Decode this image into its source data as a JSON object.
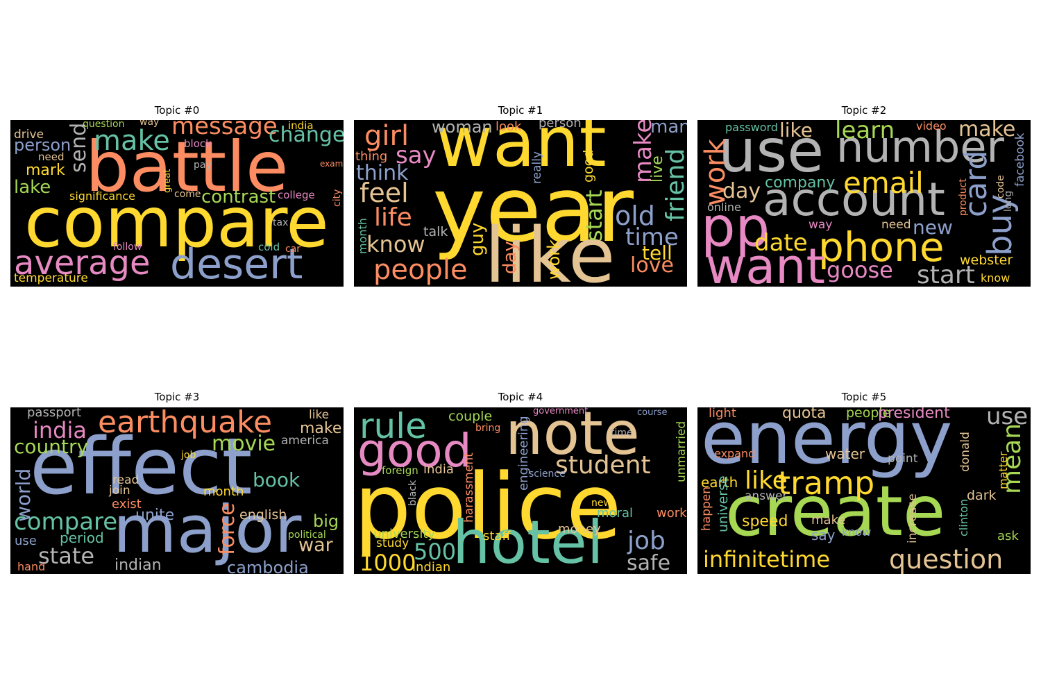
{
  "palette": {
    "teal": "#66c2a5",
    "orange": "#fc8d62",
    "blue": "#8da0cb",
    "pink": "#e78ac3",
    "green": "#a6d854",
    "yellow": "#ffd92f",
    "tan": "#e5c494",
    "grey": "#b3b3b3"
  },
  "topics": [
    {
      "title": "Topic #0",
      "words": [
        {
          "t": "battle",
          "c": "orange"
        },
        {
          "t": "compare",
          "c": "yellow"
        },
        {
          "t": "desert",
          "c": "blue"
        },
        {
          "t": "average",
          "c": "pink"
        },
        {
          "t": "make",
          "c": "teal"
        },
        {
          "t": "message",
          "c": "orange"
        },
        {
          "t": "change",
          "c": "teal"
        },
        {
          "t": "contrast",
          "c": "green"
        },
        {
          "t": "send",
          "c": "grey"
        },
        {
          "t": "person",
          "c": "blue"
        },
        {
          "t": "mark",
          "c": "yellow"
        },
        {
          "t": "lake",
          "c": "green"
        },
        {
          "t": "drive",
          "c": "tan"
        },
        {
          "t": "question",
          "c": "green"
        },
        {
          "t": "way",
          "c": "tan"
        },
        {
          "t": "india",
          "c": "yellow"
        },
        {
          "t": "need",
          "c": "tan"
        },
        {
          "t": "block",
          "c": "pink"
        },
        {
          "t": "pay",
          "c": "grey"
        },
        {
          "t": "great",
          "c": "yellow"
        },
        {
          "t": "exam",
          "c": "orange"
        },
        {
          "t": "come",
          "c": "tan"
        },
        {
          "t": "significance",
          "c": "yellow"
        },
        {
          "t": "college",
          "c": "pink"
        },
        {
          "t": "city",
          "c": "orange"
        },
        {
          "t": "tax",
          "c": "grey"
        },
        {
          "t": "follow",
          "c": "pink"
        },
        {
          "t": "cold",
          "c": "teal"
        },
        {
          "t": "car",
          "c": "orange"
        },
        {
          "t": "temperature",
          "c": "yellow"
        }
      ]
    },
    {
      "title": "Topic #1",
      "words": [
        {
          "t": "want",
          "c": "yellow"
        },
        {
          "t": "year",
          "c": "yellow"
        },
        {
          "t": "like",
          "c": "tan"
        },
        {
          "t": "girl",
          "c": "orange"
        },
        {
          "t": "woman",
          "c": "grey"
        },
        {
          "t": "look",
          "c": "orange"
        },
        {
          "t": "person",
          "c": "grey"
        },
        {
          "t": "man",
          "c": "blue"
        },
        {
          "t": "make",
          "c": "pink"
        },
        {
          "t": "live",
          "c": "green"
        },
        {
          "t": "friend",
          "c": "teal"
        },
        {
          "t": "thing",
          "c": "orange"
        },
        {
          "t": "say",
          "c": "pink"
        },
        {
          "t": "think",
          "c": "blue"
        },
        {
          "t": "feel",
          "c": "tan"
        },
        {
          "t": "life",
          "c": "orange"
        },
        {
          "t": "talk",
          "c": "grey"
        },
        {
          "t": "know",
          "c": "tan"
        },
        {
          "t": "month",
          "c": "teal"
        },
        {
          "t": "people",
          "c": "orange"
        },
        {
          "t": "guy",
          "c": "yellow"
        },
        {
          "t": "really",
          "c": "blue"
        },
        {
          "t": "good",
          "c": "yellow"
        },
        {
          "t": "start",
          "c": "green"
        },
        {
          "t": "old",
          "c": "blue"
        },
        {
          "t": "time",
          "c": "blue"
        },
        {
          "t": "tell",
          "c": "yellow"
        },
        {
          "t": "love",
          "c": "orange"
        },
        {
          "t": "day",
          "c": "orange"
        },
        {
          "t": "work",
          "c": "yellow"
        }
      ]
    },
    {
      "title": "Topic #2",
      "words": [
        {
          "t": "use",
          "c": "grey"
        },
        {
          "t": "number",
          "c": "grey"
        },
        {
          "t": "account",
          "c": "grey"
        },
        {
          "t": "phone",
          "c": "yellow"
        },
        {
          "t": "want",
          "c": "pink"
        },
        {
          "t": "pp",
          "c": "pink"
        },
        {
          "t": "work",
          "c": "orange"
        },
        {
          "t": "password",
          "c": "teal"
        },
        {
          "t": "like",
          "c": "tan"
        },
        {
          "t": "learn",
          "c": "green"
        },
        {
          "t": "video",
          "c": "orange"
        },
        {
          "t": "make",
          "c": "tan"
        },
        {
          "t": "facebook",
          "c": "blue"
        },
        {
          "t": "day",
          "c": "tan"
        },
        {
          "t": "company",
          "c": "teal"
        },
        {
          "t": "email",
          "c": "yellow"
        },
        {
          "t": "card",
          "c": "blue"
        },
        {
          "t": "buy",
          "c": "blue"
        },
        {
          "t": "code",
          "c": "tan"
        },
        {
          "t": "long",
          "c": "grey"
        },
        {
          "t": "product",
          "c": "orange"
        },
        {
          "t": "online",
          "c": "grey"
        },
        {
          "t": "way",
          "c": "pink"
        },
        {
          "t": "need",
          "c": "tan"
        },
        {
          "t": "new",
          "c": "blue"
        },
        {
          "t": "date",
          "c": "yellow"
        },
        {
          "t": "goose",
          "c": "pink"
        },
        {
          "t": "start",
          "c": "grey"
        },
        {
          "t": "webster",
          "c": "yellow"
        },
        {
          "t": "know",
          "c": "yellow"
        }
      ]
    },
    {
      "title": "Topic #3",
      "words": [
        {
          "t": "effect",
          "c": "blue"
        },
        {
          "t": "major",
          "c": "blue"
        },
        {
          "t": "earthquake",
          "c": "orange"
        },
        {
          "t": "passport",
          "c": "grey"
        },
        {
          "t": "india",
          "c": "pink"
        },
        {
          "t": "country",
          "c": "green"
        },
        {
          "t": "movie",
          "c": "green"
        },
        {
          "t": "like",
          "c": "tan"
        },
        {
          "t": "make",
          "c": "tan"
        },
        {
          "t": "america",
          "c": "grey"
        },
        {
          "t": "world",
          "c": "blue"
        },
        {
          "t": "job",
          "c": "yellow"
        },
        {
          "t": "read",
          "c": "tan"
        },
        {
          "t": "join",
          "c": "tan"
        },
        {
          "t": "exist",
          "c": "orange"
        },
        {
          "t": "book",
          "c": "teal"
        },
        {
          "t": "month",
          "c": "yellow"
        },
        {
          "t": "compare",
          "c": "teal"
        },
        {
          "t": "unite",
          "c": "blue"
        },
        {
          "t": "force",
          "c": "orange"
        },
        {
          "t": "english",
          "c": "tan"
        },
        {
          "t": "big",
          "c": "green"
        },
        {
          "t": "period",
          "c": "teal"
        },
        {
          "t": "use",
          "c": "blue"
        },
        {
          "t": "state",
          "c": "grey"
        },
        {
          "t": "political",
          "c": "green"
        },
        {
          "t": "war",
          "c": "tan"
        },
        {
          "t": "hand",
          "c": "orange"
        },
        {
          "t": "indian",
          "c": "grey"
        },
        {
          "t": "cambodia",
          "c": "blue"
        }
      ]
    },
    {
      "title": "Topic #4",
      "words": [
        {
          "t": "police",
          "c": "yellow"
        },
        {
          "t": "note",
          "c": "tan"
        },
        {
          "t": "hotel",
          "c": "teal"
        },
        {
          "t": "rule",
          "c": "teal"
        },
        {
          "t": "good",
          "c": "pink"
        },
        {
          "t": "couple",
          "c": "green"
        },
        {
          "t": "government",
          "c": "pink"
        },
        {
          "t": "course",
          "c": "blue"
        },
        {
          "t": "bring",
          "c": "orange"
        },
        {
          "t": "time",
          "c": "grey"
        },
        {
          "t": "student",
          "c": "tan"
        },
        {
          "t": "unmarried",
          "c": "green"
        },
        {
          "t": "engineering",
          "c": "blue"
        },
        {
          "t": "science",
          "c": "blue"
        },
        {
          "t": "foreign",
          "c": "green"
        },
        {
          "t": "india",
          "c": "tan"
        },
        {
          "t": "harassment",
          "c": "orange"
        },
        {
          "t": "black",
          "c": "grey"
        },
        {
          "t": "new",
          "c": "yellow"
        },
        {
          "t": "moral",
          "c": "teal"
        },
        {
          "t": "work",
          "c": "orange"
        },
        {
          "t": "money",
          "c": "tan"
        },
        {
          "t": "job",
          "c": "blue"
        },
        {
          "t": "university",
          "c": "green"
        },
        {
          "t": "study",
          "c": "yellow"
        },
        {
          "t": "staff",
          "c": "yellow"
        },
        {
          "t": "500",
          "c": "teal"
        },
        {
          "t": "1000",
          "c": "yellow"
        },
        {
          "t": "indian",
          "c": "yellow"
        },
        {
          "t": "safe",
          "c": "grey"
        }
      ]
    },
    {
      "title": "Topic #5",
      "words": [
        {
          "t": "energy",
          "c": "blue"
        },
        {
          "t": "create",
          "c": "green"
        },
        {
          "t": "tramp",
          "c": "yellow"
        },
        {
          "t": "like",
          "c": "yellow"
        },
        {
          "t": "light",
          "c": "orange"
        },
        {
          "t": "quota",
          "c": "tan"
        },
        {
          "t": "people",
          "c": "green"
        },
        {
          "t": "president",
          "c": "pink"
        },
        {
          "t": "use",
          "c": "grey"
        },
        {
          "t": "expand",
          "c": "orange"
        },
        {
          "t": "water",
          "c": "tan"
        },
        {
          "t": "point",
          "c": "grey"
        },
        {
          "t": "donald",
          "c": "tan"
        },
        {
          "t": "mean",
          "c": "green"
        },
        {
          "t": "earth",
          "c": "yellow"
        },
        {
          "t": "answer",
          "c": "grey"
        },
        {
          "t": "dark",
          "c": "tan"
        },
        {
          "t": "matter",
          "c": "yellow"
        },
        {
          "t": "happen",
          "c": "orange"
        },
        {
          "t": "universe",
          "c": "teal"
        },
        {
          "t": "speed",
          "c": "yellow"
        },
        {
          "t": "make",
          "c": "tan"
        },
        {
          "t": "say",
          "c": "blue"
        },
        {
          "t": "know",
          "c": "blue"
        },
        {
          "t": "increase",
          "c": "tan"
        },
        {
          "t": "clinton",
          "c": "teal"
        },
        {
          "t": "ask",
          "c": "green"
        },
        {
          "t": "infinitetime",
          "c": "yellow"
        },
        {
          "t": "question",
          "c": "tan"
        }
      ]
    }
  ]
}
